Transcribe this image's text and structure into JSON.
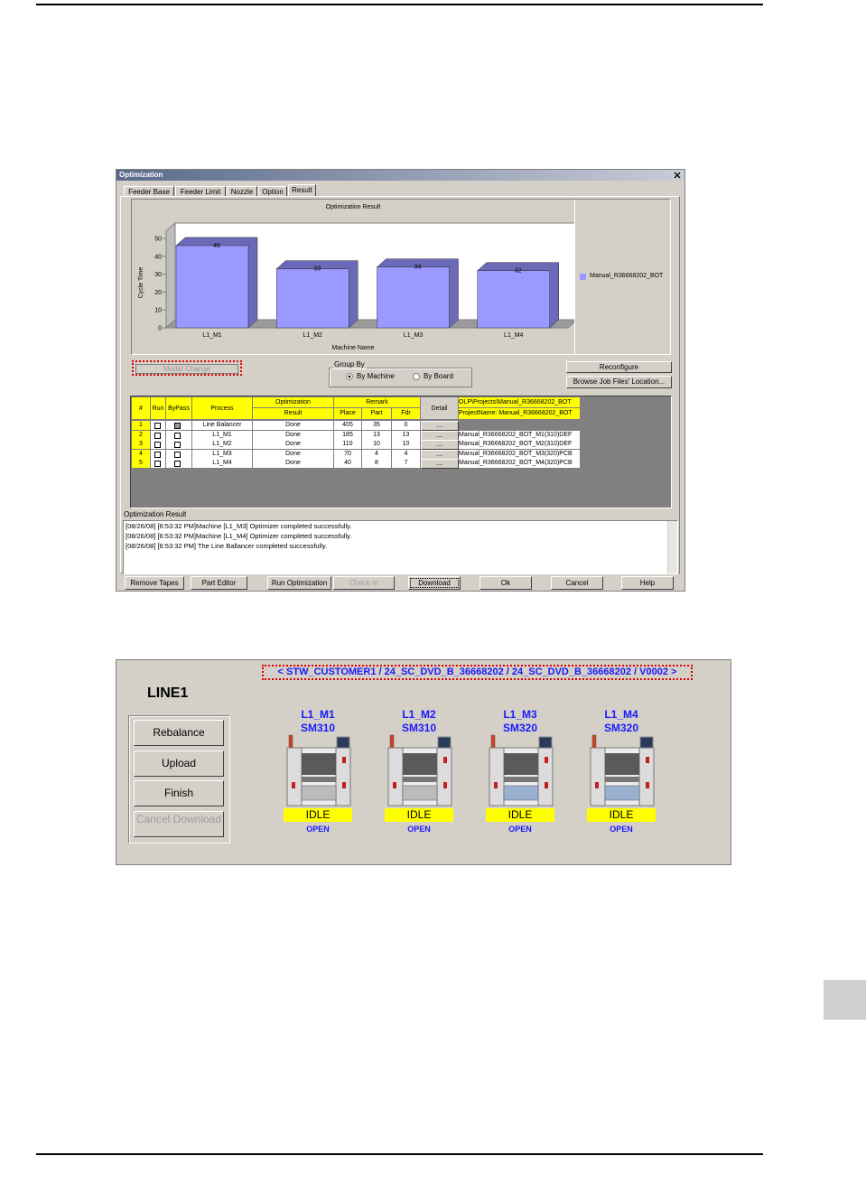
{
  "chart_data": {
    "type": "bar",
    "title": "Optimization Result",
    "y_label": "Cycle Time",
    "x_label": "Machine Name",
    "categories": [
      "L1_M1",
      "L1_M2",
      "L1_M3",
      "L1_M4"
    ],
    "series": [
      {
        "name": "Manual_R36668202_BOT",
        "color": "#9999ff",
        "values": [
          46,
          33,
          34,
          32
        ]
      }
    ],
    "ylim": [
      0,
      50
    ],
    "yticks": [
      0,
      10,
      20,
      30,
      40,
      50
    ],
    "legend": "right",
    "data_labels": true
  },
  "dialog": {
    "title": "Optimization",
    "tabs": [
      "Feeder Base",
      "Feeder Limit",
      "Nozzle",
      "Option",
      "Result"
    ],
    "active_tab": 4,
    "model_change": "Model Change",
    "group_by": {
      "label": "Group By",
      "options": [
        "By Machine",
        "By Board"
      ],
      "selected": 0
    },
    "reconfigure": "Reconfigure",
    "browse": "Browse Job Files' Location...",
    "table": {
      "headers": {
        "num": "#",
        "run": "Run",
        "bypass": "ByPass",
        "process": "Process",
        "optimization": "Optimization",
        "result": "Result",
        "remark": "Remark",
        "place": "Place",
        "part": "Part",
        "fdr": "Fdr",
        "detail": "Detail"
      },
      "path": "OLP\\Projects\\Manual_R36668202_BOT",
      "project": "ProjectName: Manual_R36668202_BOT",
      "rows": [
        {
          "num": 1,
          "run": false,
          "bypass": true,
          "process": "Line Balancer",
          "result": "Done",
          "place": 405,
          "part": 35,
          "fdr": 0,
          "detail": "..."
        },
        {
          "num": 2,
          "run": false,
          "bypass": false,
          "process": "L1_M1",
          "result": "Done",
          "place": 185,
          "part": 13,
          "fdr": 13,
          "detail": "...",
          "file": "Manual_R36668202_BOT_M1(310)DEF"
        },
        {
          "num": 3,
          "run": false,
          "bypass": false,
          "process": "L1_M2",
          "result": "Done",
          "place": 110,
          "part": 10,
          "fdr": 10,
          "detail": "...",
          "file": "Manual_R36668202_BOT_M2(310)DEF"
        },
        {
          "num": 4,
          "run": false,
          "bypass": false,
          "process": "L1_M3",
          "result": "Done",
          "place": 70,
          "part": 4,
          "fdr": 4,
          "detail": "...",
          "file": "Manual_R36668202_BOT_M3(320)PCB"
        },
        {
          "num": 5,
          "run": false,
          "bypass": false,
          "process": "L1_M4",
          "result": "Done",
          "place": 40,
          "part": 8,
          "fdr": 7,
          "detail": "...",
          "file": "Manual_R36668202_BOT_M4(320)PCB"
        }
      ]
    },
    "log": {
      "label": "Optimization Result",
      "lines": [
        "[08/26/08] [6:53:32 PM]Machine [L1_M3]  Optimizer completed successfully.",
        "[08/26/08] [6:53:32 PM]Machine [L1_M4]  Optimizer completed successfully.",
        "[08/26/08] [6:53:32 PM] The Line Ballancer completed successfully."
      ]
    },
    "buttons": [
      "Remove Tapes",
      "Part Editor",
      "Run Optimization",
      "Check-In",
      "Download",
      "Ok",
      "Cancel",
      "Help"
    ]
  },
  "line_panel": {
    "header": "< STW_CUSTOMER1 / 24_SC_DVD_B_36668202 / 24_SC_DVD_B_36668202 / V0002 >",
    "line": "LINE1",
    "buttons": [
      "Rebalance",
      "Upload",
      "Finish",
      "Cancel Download"
    ],
    "machines": [
      {
        "name": "L1_M1",
        "model": "SM310",
        "status": "IDLE",
        "state": "OPEN"
      },
      {
        "name": "L1_M2",
        "model": "SM310",
        "status": "IDLE",
        "state": "OPEN"
      },
      {
        "name": "L1_M3",
        "model": "SM320",
        "status": "IDLE",
        "state": "OPEN"
      },
      {
        "name": "L1_M4",
        "model": "SM320",
        "status": "IDLE",
        "state": "OPEN"
      }
    ]
  }
}
